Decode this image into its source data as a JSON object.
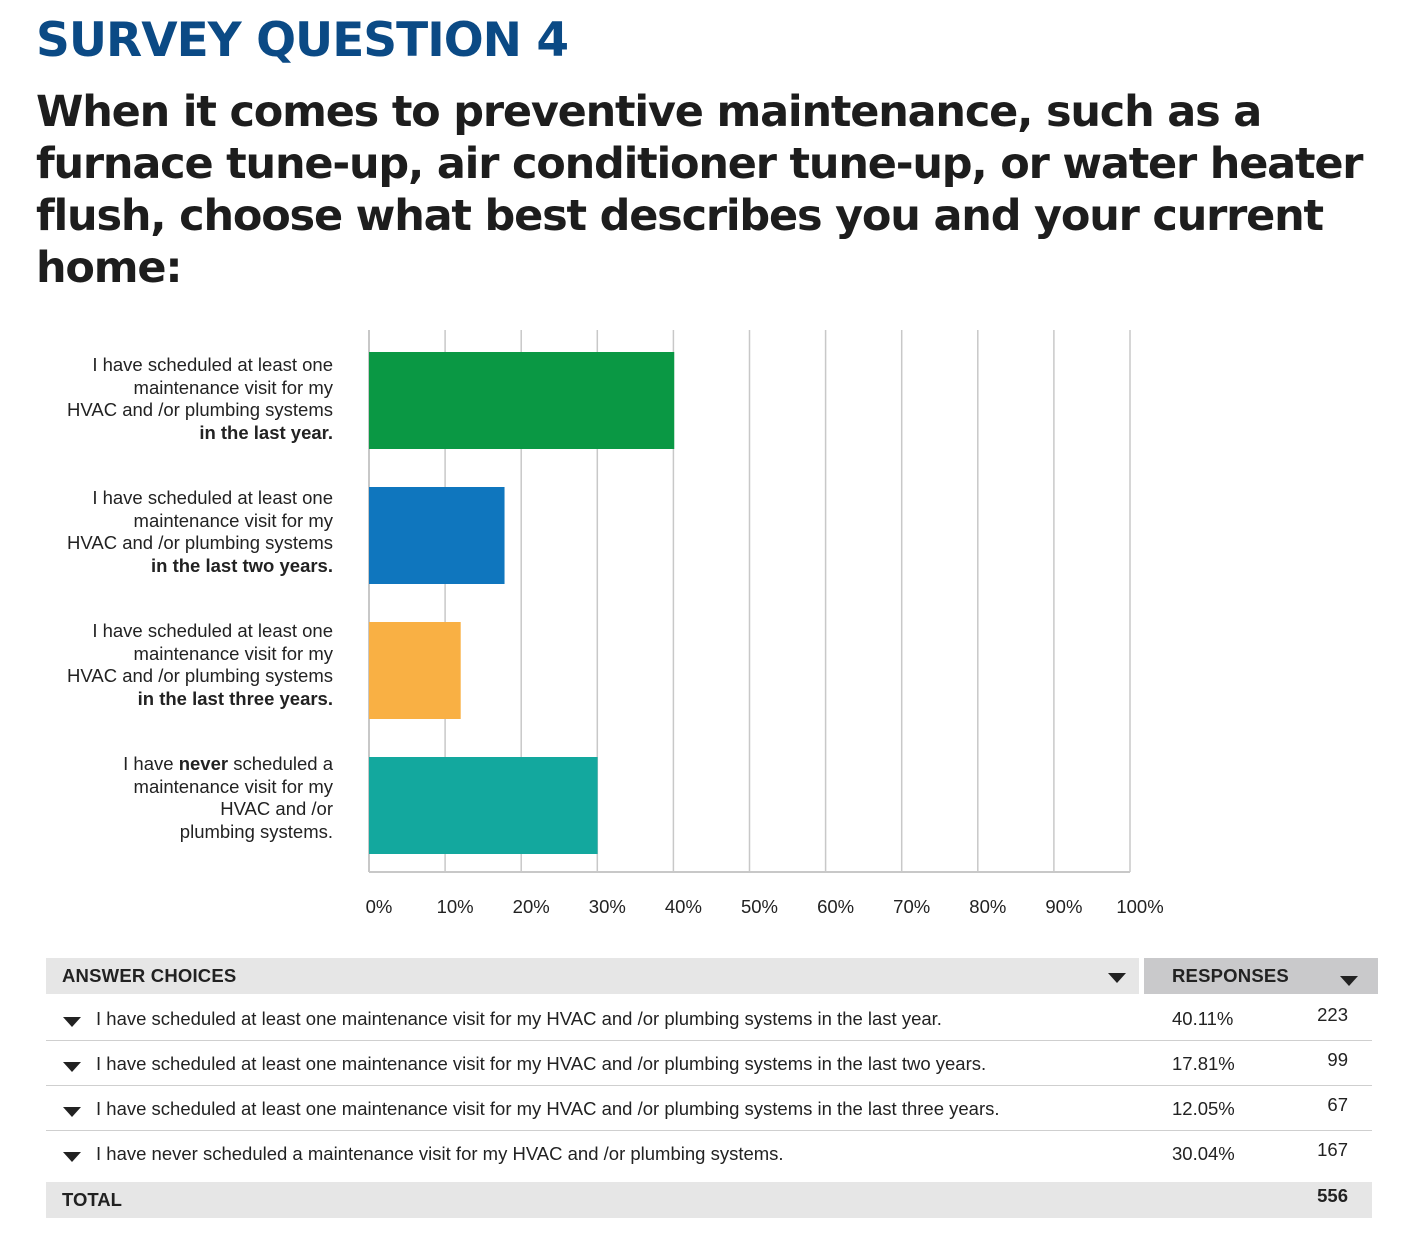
{
  "page": {
    "title": "SURVEY QUESTION 4",
    "question": "When it comes to preventive maintenance, such as a furnace tune-up, air conditioner tune-up, or water heater flush, choose what best describes you and your current home:"
  },
  "chart_data": {
    "type": "bar",
    "orientation": "horizontal",
    "title": "",
    "xlabel": "",
    "ylabel": "",
    "xlim": [
      0,
      100
    ],
    "grid": true,
    "categories": [
      "I have scheduled at least one maintenance visit for my HVAC and /or plumbing systems in the last year.",
      "I have scheduled at least one maintenance visit for my HVAC and /or plumbing systems in the last two years.",
      "I have scheduled at least one maintenance visit for my HVAC and /or plumbing systems in the last three years.",
      "I have never scheduled a maintenance visit for my HVAC and /or plumbing systems."
    ],
    "values": [
      40.11,
      17.81,
      12.05,
      30.04
    ],
    "colors": [
      "#0a9844",
      "#0f76be",
      "#f9b044",
      "#13a89e"
    ],
    "tick_labels": [
      "0%",
      "10%",
      "20%",
      "30%",
      "40%",
      "50%",
      "60%",
      "70%",
      "80%",
      "90%",
      "100%"
    ]
  },
  "bar_labels": [
    {
      "line1": "I have scheduled at least one",
      "line2": "maintenance visit for my",
      "line3": "HVAC and /or plumbing systems",
      "line4_bold": "in the last year."
    },
    {
      "line1": "I have scheduled at least one",
      "line2": "maintenance visit for my",
      "line3": "HVAC and /or plumbing systems",
      "line4_bold": "in the last two years."
    },
    {
      "line1": "I have scheduled at least one",
      "line2": "maintenance visit for my",
      "line3": "HVAC and /or plumbing systems",
      "line4_bold": "in the last three years."
    },
    {
      "line1_pre": "I have ",
      "line1_bold": "never",
      "line1_post": " scheduled a",
      "line2": "maintenance visit for my",
      "line3": "HVAC and /or",
      "line4": "plumbing systems."
    }
  ],
  "table": {
    "header_choices": "ANSWER CHOICES",
    "header_responses": "RESPONSES",
    "rows": [
      {
        "choice": "I have scheduled at least one maintenance visit for my HVAC and /or plumbing systems in the last year.",
        "percent": "40.11%",
        "count": "223"
      },
      {
        "choice": "I have scheduled at least one maintenance visit for my HVAC and /or plumbing systems in the last two years.",
        "percent": "17.81%",
        "count": "99"
      },
      {
        "choice": "I have scheduled at least one maintenance visit for my HVAC and /or plumbing systems in the last three years.",
        "percent": "12.05%",
        "count": "67"
      },
      {
        "choice": "I have never scheduled a maintenance visit for my HVAC and /or plumbing systems.",
        "percent": "30.04%",
        "count": "167"
      }
    ],
    "total_label": "TOTAL",
    "total_value": "556"
  },
  "icons": {
    "sort": "caret-down-icon",
    "row_toggle": "caret-down-icon"
  }
}
